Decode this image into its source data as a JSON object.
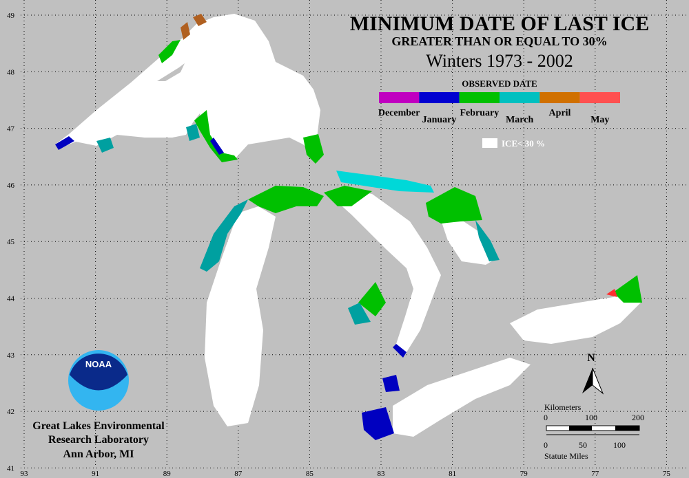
{
  "header": {
    "title": "MINIMUM DATE OF LAST ICE",
    "subtitle": "GREATER THAN OR EQUAL TO 30%",
    "period": "Winters 1973 - 2002"
  },
  "legend": {
    "title": "OBSERVED DATE",
    "items": [
      {
        "label": "December",
        "color": "#c000c0"
      },
      {
        "label": "January",
        "color": "#0000d0"
      },
      {
        "label": "February",
        "color": "#00c000"
      },
      {
        "label": "March",
        "color": "#00c0c0"
      },
      {
        "label": "April",
        "color": "#d07000"
      },
      {
        "label": "May",
        "color": "#ff5050"
      }
    ],
    "ice_label": "ICE< 30 %"
  },
  "grid": {
    "latitudes": [
      49,
      48,
      47,
      46,
      45,
      44,
      43,
      42,
      41
    ],
    "longitudes": [
      93,
      91,
      89,
      87,
      85,
      83,
      81,
      79,
      77,
      75
    ]
  },
  "lab": {
    "lines": [
      "Great Lakes Environmental",
      "Research Laboratory",
      "Ann Arbor, MI"
    ],
    "logo": "NOAA"
  },
  "north": "N",
  "scale": {
    "km_title": "Kilometers",
    "km_labels": [
      "0",
      "100",
      "200"
    ],
    "mi_labels": [
      "0",
      "50",
      "100"
    ],
    "mi_title": "Statute Miles"
  }
}
